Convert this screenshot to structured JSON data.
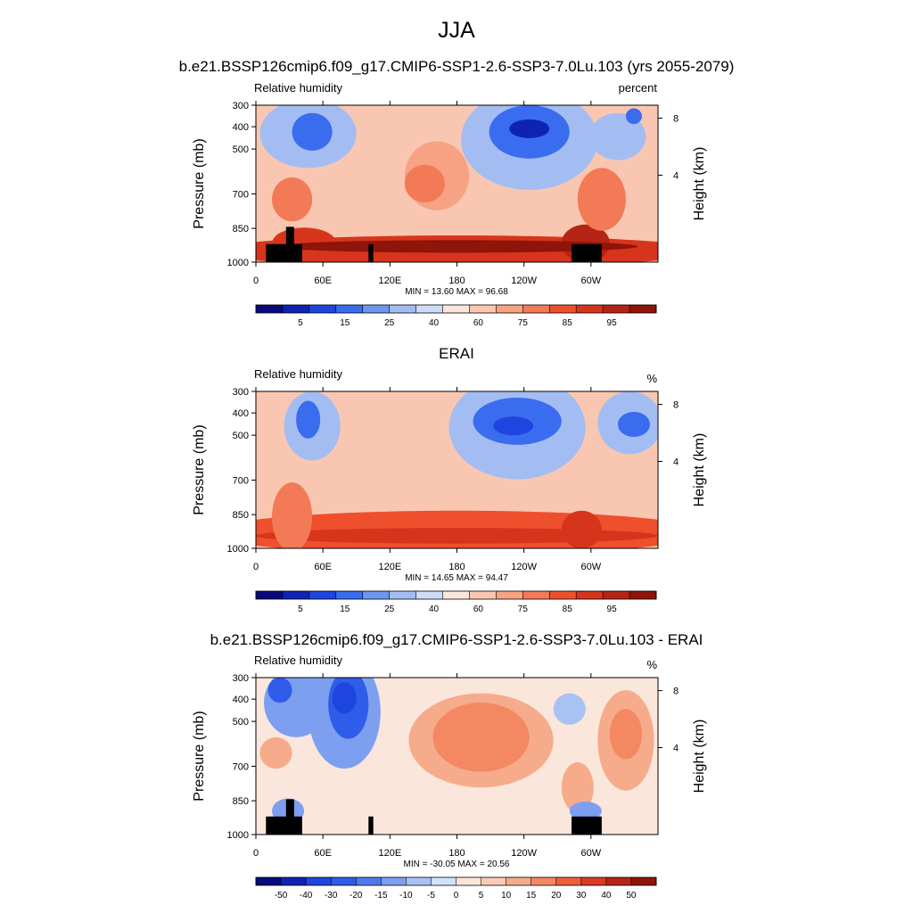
{
  "page_title": "JJA",
  "chart_data": [
    {
      "type": "heatmap",
      "title": "b.e21.BSSP126cmip6.f09_g17.CMIP6-SSP1-2.6-SSP3-7.0Lu.103 (yrs 2055-2079)",
      "variable": "Relative humidity",
      "units": "percent",
      "ylabel": "Pressure (mb)",
      "ylabel_right": "Height (km)",
      "x_ticks": [
        "0",
        "60E",
        "120E",
        "180",
        "120W",
        "60W"
      ],
      "y_ticks": [
        "300",
        "400",
        "500",
        "700",
        "850",
        "1000"
      ],
      "right_ticks": [
        "8",
        "4"
      ],
      "stats": "MIN =  13.60  MAX =  96.68",
      "min": 13.6,
      "max": 96.68,
      "colorbar_labels": [
        "5",
        "15",
        "25",
        "40",
        "60",
        "75",
        "85",
        "95"
      ],
      "colorbar_colors": [
        "#0a0a7a",
        "#0e23b4",
        "#1f45e0",
        "#3a6cf0",
        "#6f96ee",
        "#a3bdf2",
        "#ccdcf7",
        "#fbe6dc",
        "#f9c7b1",
        "#f6a283",
        "#f27a56",
        "#ee4f2c",
        "#d6351c",
        "#b52414",
        "#8f1409"
      ],
      "orography": true
    },
    {
      "type": "heatmap",
      "title": "ERAI",
      "variable": "Relative humidity",
      "units": "%",
      "ylabel": "Pressure (mb)",
      "ylabel_right": "Height (km)",
      "x_ticks": [
        "0",
        "60E",
        "120E",
        "180",
        "120W",
        "60W"
      ],
      "y_ticks": [
        "300",
        "400",
        "500",
        "700",
        "850",
        "1000"
      ],
      "right_ticks": [
        "8",
        "4"
      ],
      "stats": "MIN =  14.65  MAX =  94.47",
      "min": 14.65,
      "max": 94.47,
      "colorbar_labels": [
        "5",
        "15",
        "25",
        "40",
        "60",
        "75",
        "85",
        "95"
      ],
      "colorbar_colors": [
        "#0a0a7a",
        "#0e23b4",
        "#1f45e0",
        "#3a6cf0",
        "#6f96ee",
        "#a3bdf2",
        "#ccdcf7",
        "#fbe6dc",
        "#f9c7b1",
        "#f6a283",
        "#f27a56",
        "#ee4f2c",
        "#d6351c",
        "#b52414",
        "#8f1409"
      ],
      "orography": false
    },
    {
      "type": "heatmap",
      "title": "b.e21.BSSP126cmip6.f09_g17.CMIP6-SSP1-2.6-SSP3-7.0Lu.103 - ERAI",
      "variable": "Relative humidity",
      "units": "%",
      "ylabel": "Pressure (mb)",
      "ylabel_right": "Height (km)",
      "x_ticks": [
        "0",
        "60E",
        "120E",
        "180",
        "120W",
        "60W"
      ],
      "y_ticks": [
        "300",
        "400",
        "500",
        "700",
        "850",
        "1000"
      ],
      "right_ticks": [
        "8",
        "4"
      ],
      "stats": "MIN = -30.05  MAX =  20.56",
      "min": -30.05,
      "max": 20.56,
      "colorbar_labels": [
        "-50",
        "-40",
        "-30",
        "-20",
        "-15",
        "-10",
        "-5",
        "0",
        "5",
        "10",
        "15",
        "20",
        "30",
        "40",
        "50"
      ],
      "colorbar_colors": [
        "#0a0a7a",
        "#0e23b4",
        "#1f45e0",
        "#2f5ce8",
        "#4f7aec",
        "#7d9ff0",
        "#a8c2f4",
        "#d3e2f8",
        "#fbe6dc",
        "#f9cbb4",
        "#f6ab8b",
        "#f38862",
        "#ef5f3a",
        "#d83b1f",
        "#b52414",
        "#8f1409"
      ],
      "orography": true
    }
  ]
}
